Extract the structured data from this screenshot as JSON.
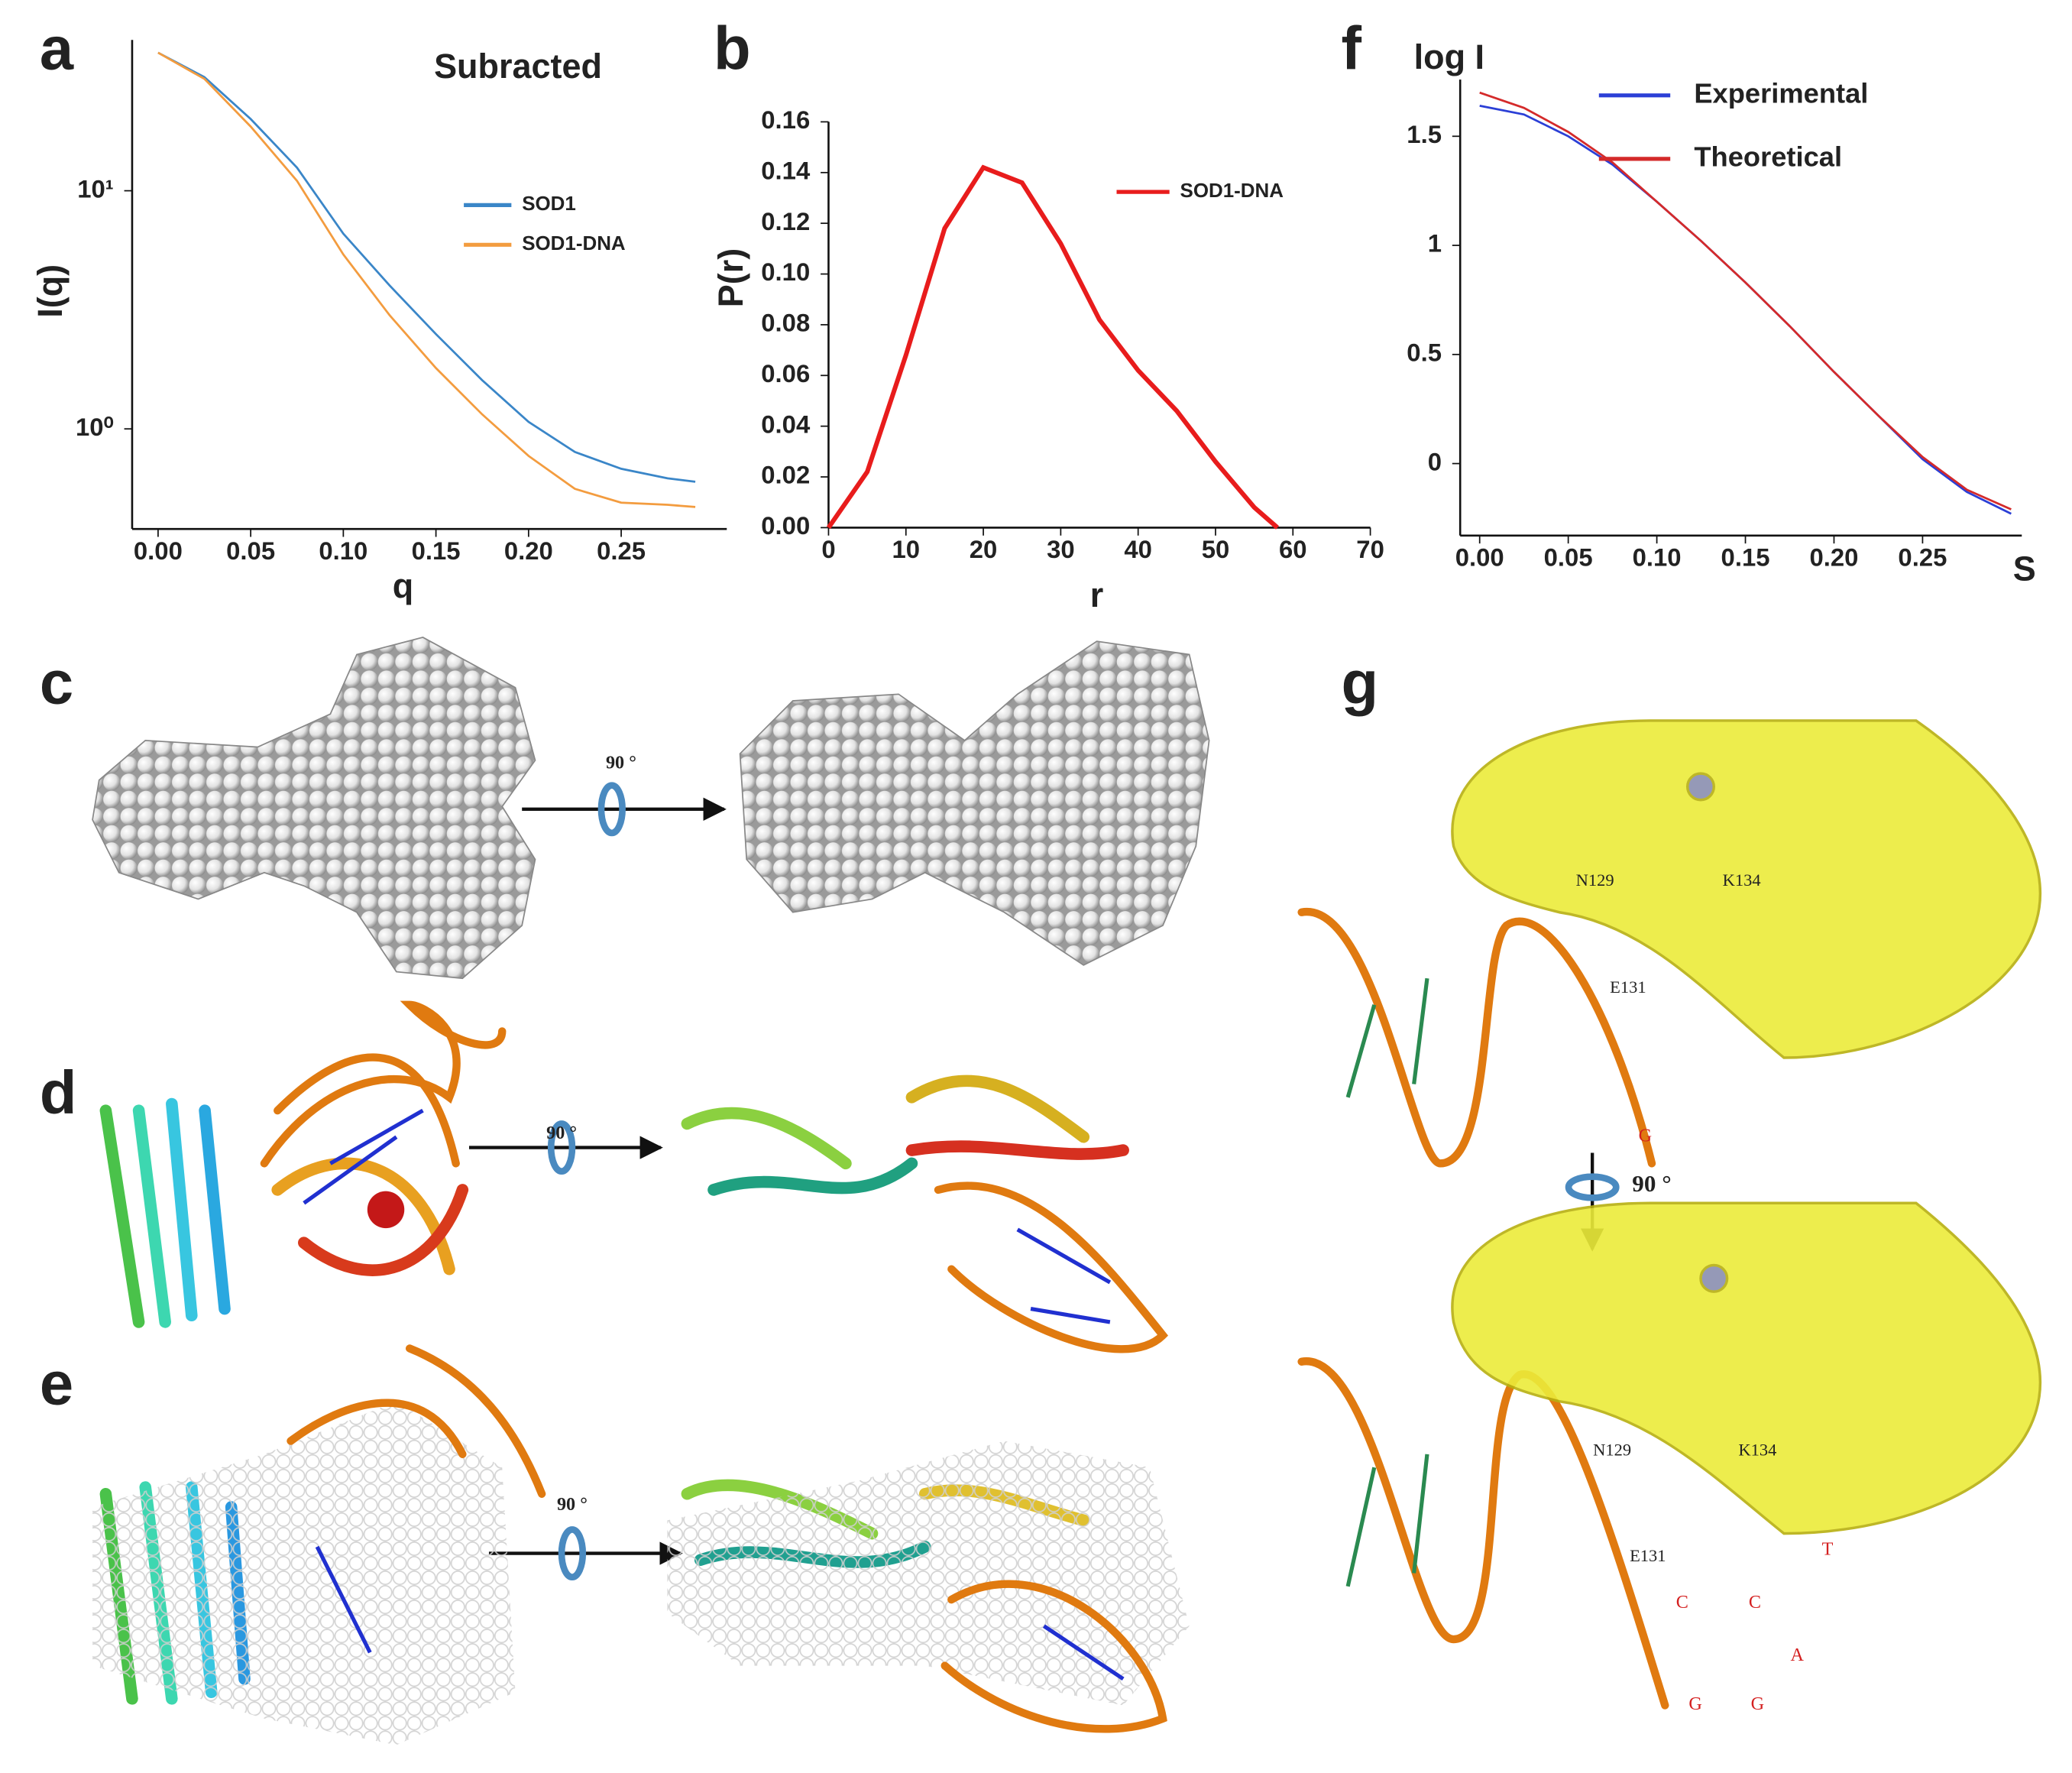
{
  "chart_data": [
    {
      "type": "line",
      "panel": "a",
      "title": "Subracted",
      "x_label": "q",
      "y_label": "I(q)",
      "log_y": true,
      "x": [
        0,
        0.025,
        0.05,
        0.075,
        0.1,
        0.125,
        0.15,
        0.175,
        0.2,
        0.225,
        0.25,
        0.275,
        0.29
      ],
      "xlim": [
        -0.014,
        0.307
      ],
      "xticks": [
        {
          "value": 0,
          "label": "0.00"
        },
        {
          "value": 0.05,
          "label": "0.05"
        },
        {
          "value": 0.1,
          "label": "0.10"
        },
        {
          "value": 0.15,
          "label": "0.15"
        },
        {
          "value": 0.2,
          "label": "0.20"
        },
        {
          "value": 0.25,
          "label": "0.25"
        }
      ],
      "ylim": [
        0.38,
        43
      ],
      "yticks": [
        {
          "value": 10,
          "label": "10¹"
        },
        {
          "value": 1,
          "label": "10⁰"
        }
      ],
      "series": [
        {
          "name": "SOD1",
          "color": "#3a86c8",
          "values": [
            38,
            30,
            20,
            12.5,
            6.6,
            4,
            2.5,
            1.6,
            1.07,
            0.8,
            0.68,
            0.62,
            0.6
          ]
        },
        {
          "name": "SOD1-DNA",
          "color": "#f39c3f",
          "values": [
            38,
            29.5,
            18.6,
            11,
            5.4,
            3,
            1.8,
            1.15,
            0.77,
            0.56,
            0.49,
            0.48,
            0.47
          ]
        }
      ]
    },
    {
      "type": "line",
      "panel": "b",
      "x_label": "r",
      "y_label": "P(r)",
      "x": [
        0,
        5,
        10,
        15,
        20,
        25,
        30,
        35,
        40,
        45,
        50,
        55,
        58
      ],
      "xlim": [
        0,
        70
      ],
      "xticks": [
        0,
        10,
        20,
        30,
        40,
        50,
        60,
        70
      ],
      "ylim": [
        0,
        0.16
      ],
      "yticks": [
        {
          "value": 0,
          "label": "0.00"
        },
        {
          "value": 0.02,
          "label": "0.02"
        },
        {
          "value": 0.04,
          "label": "0.04"
        },
        {
          "value": 0.06,
          "label": "0.06"
        },
        {
          "value": 0.08,
          "label": "0.08"
        },
        {
          "value": 0.1,
          "label": "0.10"
        },
        {
          "value": 0.12,
          "label": "0.12"
        },
        {
          "value": 0.14,
          "label": "0.14"
        },
        {
          "value": 0.16,
          "label": "0.16"
        }
      ],
      "series": [
        {
          "name": "SOD1-DNA",
          "color": "#e81c1c",
          "values": [
            0,
            0.022,
            0.068,
            0.118,
            0.142,
            0.136,
            0.112,
            0.082,
            0.062,
            0.046,
            0.026,
            0.008,
            0
          ]
        }
      ]
    },
    {
      "type": "line",
      "panel": "f",
      "x_label": "S",
      "y_label": "log I",
      "x": [
        0,
        0.025,
        0.05,
        0.075,
        0.1,
        0.125,
        0.15,
        0.175,
        0.2,
        0.225,
        0.25,
        0.275,
        0.3
      ],
      "xlim": [
        -0.011,
        0.306
      ],
      "xticks": [
        {
          "value": 0,
          "label": "0.00"
        },
        {
          "value": 0.05,
          "label": "0.05"
        },
        {
          "value": 0.1,
          "label": "0.10"
        },
        {
          "value": 0.15,
          "label": "0.15"
        },
        {
          "value": 0.2,
          "label": "0.20"
        },
        {
          "value": 0.25,
          "label": "0.25"
        }
      ],
      "ylim": [
        -0.33,
        1.76
      ],
      "yticks": [
        0,
        0.5,
        1,
        1.5
      ],
      "series": [
        {
          "name": "Experimental",
          "color": "#2b3fd6",
          "values": [
            1.64,
            1.6,
            1.5,
            1.37,
            1.2,
            1.02,
            0.83,
            0.63,
            0.42,
            0.22,
            0.02,
            -0.13,
            -0.23
          ]
        },
        {
          "name": "Theoretical",
          "color": "#d42a2a",
          "values": [
            1.7,
            1.63,
            1.52,
            1.38,
            1.2,
            1.02,
            0.83,
            0.63,
            0.42,
            0.22,
            0.03,
            -0.12,
            -0.21
          ]
        }
      ]
    }
  ],
  "figures": [
    {
      "label": "c",
      "rotation": "90 °"
    },
    {
      "label": "d",
      "rotation": "90 °"
    },
    {
      "label": "e",
      "rotation": "90 °"
    },
    {
      "label": "g",
      "rotation": "90 °",
      "residues_top": [
        "N129",
        "K134",
        "E131",
        "G"
      ],
      "residues_bottom": [
        "N129",
        "K134",
        "E131",
        "C",
        "C",
        "T",
        "A",
        "G",
        "G"
      ]
    }
  ]
}
